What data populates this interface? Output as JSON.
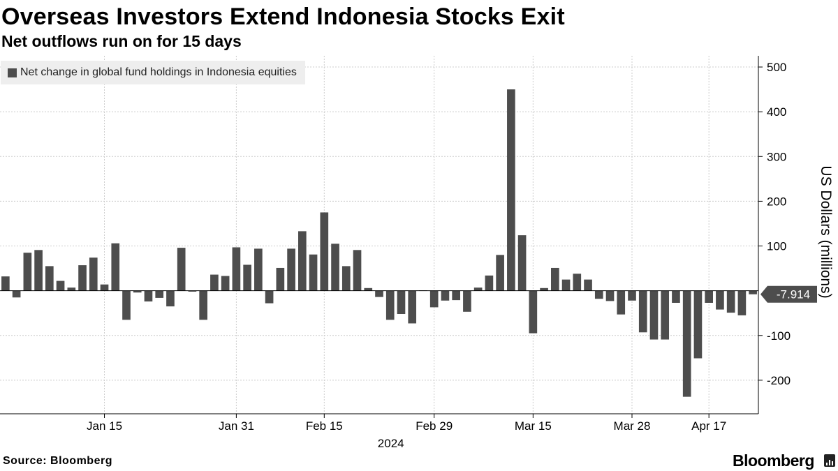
{
  "header": {
    "title": "Overseas Investors Extend Indonesia Stocks Exit",
    "subtitle": "Net outflows run on for 15 days"
  },
  "footer": {
    "source": "Source: Bloomberg",
    "brand": "Bloomberg"
  },
  "colors": {
    "bar": "#4d4d4d",
    "grid": "#cccccc",
    "axis": "#000000",
    "legend_bg": "#eeeeee"
  },
  "chart_data": {
    "type": "bar",
    "ylabel": "US Dollars (millions)",
    "xlabel": "",
    "year_label": "2024",
    "ylim": [
      -275,
      525
    ],
    "yticks": [
      500,
      400,
      300,
      200,
      100,
      -100,
      -200
    ],
    "grid": true,
    "legend_position": "top-left",
    "series": [
      {
        "name": "Net change in global fund holdings in Indonesia equities",
        "values": [
          32,
          -15,
          85,
          91,
          55,
          22,
          7,
          57,
          74,
          14,
          106,
          -65,
          -4,
          -24,
          -16,
          -35,
          96,
          -2,
          -65,
          36,
          33,
          97,
          58,
          94,
          -28,
          51,
          94,
          133,
          81,
          175,
          105,
          55,
          91,
          6,
          -14,
          -65,
          -52,
          -73,
          1,
          -37,
          -22,
          -21,
          -47,
          7,
          34,
          80,
          450,
          124,
          -95,
          6,
          51,
          25,
          38,
          25,
          -18,
          -23,
          -53,
          -22,
          -93,
          -109,
          -109,
          -27,
          -237,
          -151,
          -27,
          -42,
          -49,
          -55,
          -7.914
        ]
      }
    ],
    "x_ticks": [
      {
        "label": "Jan 15",
        "index": 9
      },
      {
        "label": "Jan 31",
        "index": 21
      },
      {
        "label": "Feb 15",
        "index": 29
      },
      {
        "label": "Feb 29",
        "index": 39
      },
      {
        "label": "Mar 15",
        "index": 48
      },
      {
        "label": "Mar 28",
        "index": 57
      },
      {
        "label": "Apr 17",
        "index": 64
      }
    ],
    "last_value_label": "-7.914"
  }
}
